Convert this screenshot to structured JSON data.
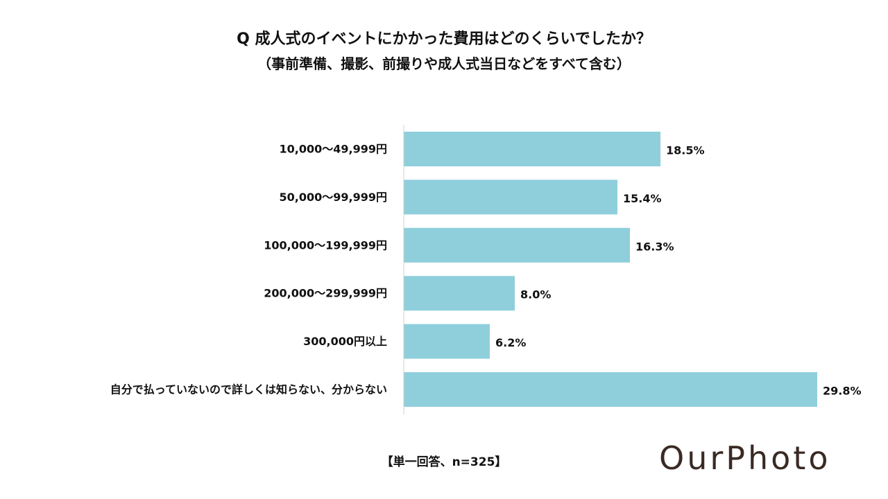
{
  "chart_data": {
    "type": "bar",
    "orientation": "horizontal",
    "title": "Q 成人式のイベントにかかった費用はどのくらいでしたか？",
    "subtitle": "（事前準備、撮影、前撮りや成人式当日などをすべて含む）",
    "categories": [
      "10,000〜49,999円",
      "50,000〜99,999円",
      "100,000〜199,999円",
      "200,000〜299,999円",
      "300,000円以上",
      "自分で払っていないので詳しくは知らない、分からない"
    ],
    "values": [
      18.5,
      15.4,
      16.3,
      8.0,
      6.2,
      29.8
    ],
    "value_labels": [
      "18.5%",
      "15.4%",
      "16.3%",
      "8.0%",
      "6.2%",
      "29.8%"
    ],
    "unit": "%",
    "xlim": [
      0,
      31
    ],
    "bar_color": "#8fcfdc",
    "axis_color": "#d0d0d0",
    "note": "【単一回答、n=325】"
  },
  "brand": {
    "logo_text": "OurPhoto",
    "logo_color": "#3a2a24"
  }
}
